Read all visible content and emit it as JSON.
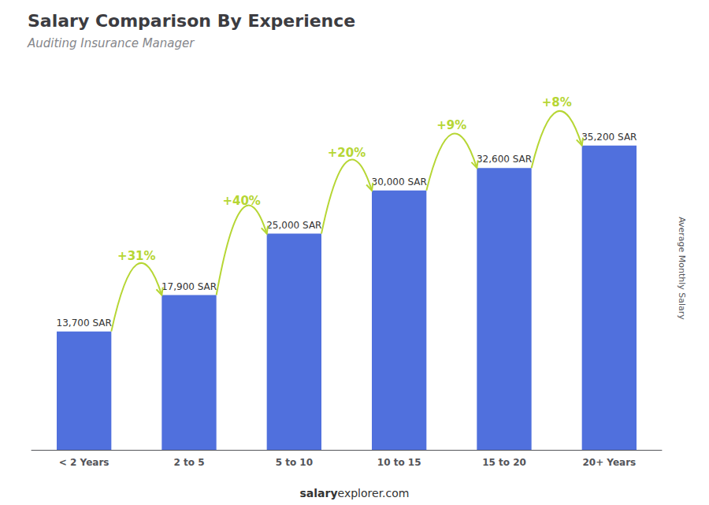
{
  "chart_data": {
    "type": "bar",
    "title": "Salary Comparison By Experience",
    "subtitle": "Auditing Insurance Manager",
    "categories": [
      "< 2 Years",
      "2 to 5",
      "5 to 10",
      "10 to 15",
      "15 to 20",
      "20+ Years"
    ],
    "values": [
      13700,
      17900,
      25000,
      30000,
      32600,
      35200
    ],
    "value_labels": [
      "13,700 SAR",
      "17,900 SAR",
      "25,000 SAR",
      "30,000 SAR",
      "32,600 SAR",
      "35,200 SAR"
    ],
    "data_labels": true,
    "annotations": [
      "+31%",
      "+40%",
      "+20%",
      "+9%",
      "+8%"
    ],
    "ylabel": "Average Monthly Salary",
    "footer": [
      "salary",
      "explorer.com"
    ],
    "ylim": [
      0,
      42000
    ],
    "tick_labels": "x",
    "grid": false
  }
}
